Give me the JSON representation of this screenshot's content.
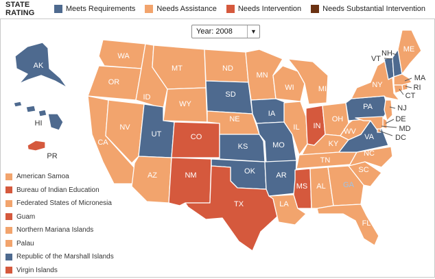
{
  "legend": {
    "title": "STATE RATING",
    "categories": [
      {
        "key": "meets",
        "label": "Meets Requirements",
        "color": "#4e6a8f"
      },
      {
        "key": "assist",
        "label": "Needs Assistance",
        "color": "#f2a46d"
      },
      {
        "key": "interv",
        "label": "Needs Intervention",
        "color": "#d5593d"
      },
      {
        "key": "subst",
        "label": "Needs Substantial Intervention",
        "color": "#6b3212"
      }
    ]
  },
  "year_selector": {
    "label": "Year: 2008"
  },
  "states": {
    "AK": "meets",
    "HI": "meets",
    "PR": "interv",
    "WA": "assist",
    "OR": "assist",
    "CA": "assist",
    "NV": "assist",
    "ID": "assist",
    "MT": "assist",
    "WY": "assist",
    "UT": "meets",
    "CO": "interv",
    "AZ": "assist",
    "NM": "interv",
    "ND": "assist",
    "SD": "meets",
    "NE": "assist",
    "KS": "meets",
    "OK": "meets",
    "TX": "interv",
    "MN": "assist",
    "IA": "meets",
    "MO": "meets",
    "AR": "meets",
    "LA": "assist",
    "WI": "assist",
    "IL": "assist",
    "MI": "assist",
    "IN": "interv",
    "OH": "assist",
    "KY": "assist",
    "TN": "assist",
    "MS": "interv",
    "AL": "assist",
    "GA": "assist",
    "FL": "assist",
    "SC": "assist",
    "NC": "assist",
    "VA": "meets",
    "WV": "assist",
    "PA": "meets",
    "NY": "assist",
    "VT": "meets",
    "NH": "meets",
    "ME": "assist",
    "MA": "assist",
    "RI": "assist",
    "CT": "assist",
    "NJ": "assist",
    "DE": "assist",
    "MD": "assist",
    "DC": "assist"
  },
  "territories": [
    {
      "label": "American Samoa",
      "rating": "assist"
    },
    {
      "label": "Bureau of Indian Education",
      "rating": "interv"
    },
    {
      "label": "Federated States of Micronesia",
      "rating": "assist"
    },
    {
      "label": "Guam",
      "rating": "interv"
    },
    {
      "label": "Northern Mariana Islands",
      "rating": "assist"
    },
    {
      "label": "Palau",
      "rating": "assist"
    },
    {
      "label": "Republic of the Marshall Islands",
      "rating": "meets"
    },
    {
      "label": "Virgin Islands",
      "rating": "interv"
    }
  ]
}
